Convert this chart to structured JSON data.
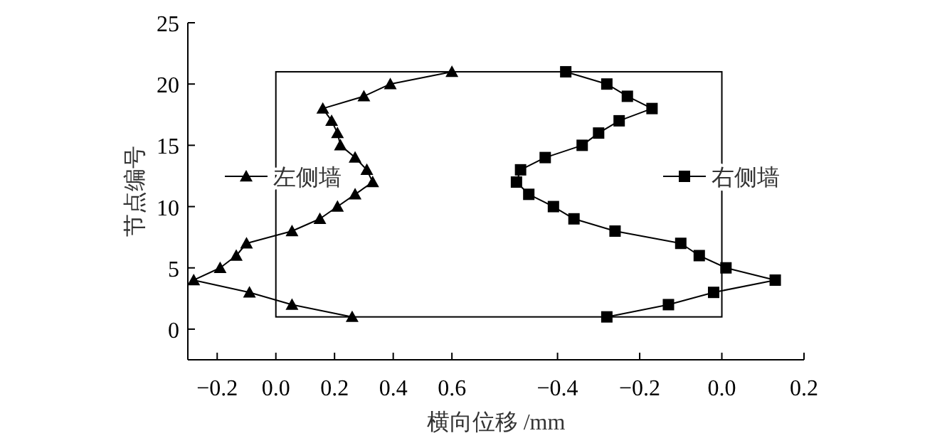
{
  "chart_data": [
    {
      "type": "line",
      "xlabel": "横向位移 /mm",
      "ylabel": "节点编号",
      "xlim": [
        -0.3,
        0.75
      ],
      "xticks": [
        {
          "value": -0.2,
          "label": "−0.2"
        },
        {
          "value": 0,
          "label": "0.0"
        },
        0.2,
        0.4,
        0.6
      ],
      "ylim": [
        -2.5,
        25
      ],
      "yticks": [
        0,
        5,
        10,
        15,
        20,
        25
      ],
      "legend": "left",
      "marker": "triangle",
      "line_style": "solid",
      "grid": false,
      "series": [
        {
          "name": "左侧墙",
          "color": "#000000",
          "x": [
            0.26,
            0.055,
            -0.09,
            -0.28,
            -0.19,
            -0.135,
            -0.1,
            0.055,
            0.15,
            0.21,
            0.27,
            0.33,
            0.31,
            0.27,
            0.22,
            0.21,
            0.19,
            0.16,
            0.3,
            0.39,
            0.6
          ],
          "values": [
            1,
            2,
            3,
            4,
            5,
            6,
            7,
            8,
            9,
            10,
            11,
            12,
            13,
            14,
            15,
            16,
            17,
            18,
            19,
            20,
            21
          ]
        }
      ]
    },
    {
      "type": "line",
      "xlim": [
        -0.55,
        0.2
      ],
      "xticks": [
        {
          "value": -0.4,
          "label": "−0.4"
        },
        {
          "value": -0.2,
          "label": "−0.2"
        },
        {
          "value": 0,
          "label": "0.0"
        },
        0.2
      ],
      "ylim": [
        -2.5,
        25
      ],
      "tick_labels": "x",
      "legend": "right",
      "marker": "square",
      "line_style": "solid",
      "grid": false,
      "series": [
        {
          "name": "右侧墙",
          "color": "#000000",
          "x": [
            -0.28,
            -0.13,
            -0.02,
            0.13,
            0.01,
            -0.055,
            -0.1,
            -0.26,
            -0.36,
            -0.41,
            -0.47,
            -0.5,
            -0.49,
            -0.43,
            -0.34,
            -0.3,
            -0.25,
            -0.17,
            -0.23,
            -0.28,
            -0.38
          ],
          "values": [
            1,
            2,
            3,
            4,
            5,
            6,
            7,
            8,
            9,
            10,
            11,
            12,
            13,
            14,
            15,
            16,
            17,
            18,
            19,
            20,
            21
          ]
        }
      ]
    }
  ]
}
